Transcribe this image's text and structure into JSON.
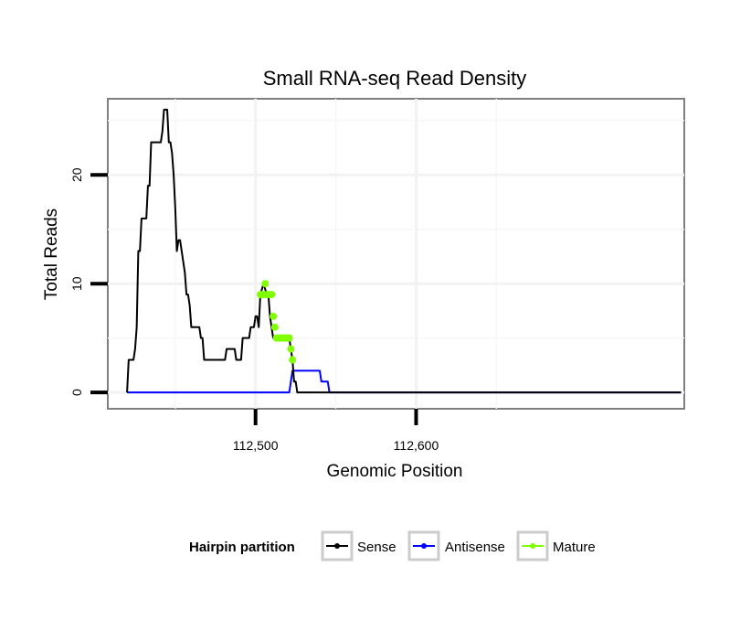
{
  "chart_data": {
    "type": "line",
    "title": "Small RNA-seq Read Density",
    "xlabel": "Genomic Position",
    "ylabel": "Total Reads",
    "xlim": [
      112408,
      112767
    ],
    "ylim": [
      -1.5,
      27
    ],
    "x_ticks": [
      112500,
      112600
    ],
    "x_tick_labels": [
      "112,500",
      "112,600"
    ],
    "y_ticks": [
      0,
      10,
      20
    ],
    "y_tick_labels": [
      "0",
      "10",
      "20"
    ],
    "grid": true,
    "legend": {
      "title": "Hairpin partition",
      "position": "bottom",
      "entries": [
        "Sense",
        "Antisense",
        "Mature"
      ]
    },
    "colors": {
      "Sense": "#000000",
      "Antisense": "#0000ff",
      "Mature": "#7fff00"
    },
    "series": [
      {
        "name": "Sense",
        "points": [
          [
            112420,
            0
          ],
          [
            112421,
            3
          ],
          [
            112424,
            3
          ],
          [
            112425,
            4
          ],
          [
            112426,
            6
          ],
          [
            112427,
            13
          ],
          [
            112428,
            13
          ],
          [
            112429,
            16
          ],
          [
            112432,
            16
          ],
          [
            112433,
            19
          ],
          [
            112434,
            19
          ],
          [
            112435,
            23
          ],
          [
            112441,
            23
          ],
          [
            112442,
            24
          ],
          [
            112443,
            26
          ],
          [
            112445,
            26
          ],
          [
            112446,
            23
          ],
          [
            112447,
            23
          ],
          [
            112448,
            22
          ],
          [
            112449,
            20
          ],
          [
            112450,
            17
          ],
          [
            112451,
            13
          ],
          [
            112452,
            14
          ],
          [
            112453,
            14
          ],
          [
            112454,
            13
          ],
          [
            112456,
            11
          ],
          [
            112457,
            9
          ],
          [
            112458,
            9
          ],
          [
            112459,
            8
          ],
          [
            112460,
            6
          ],
          [
            112465,
            6
          ],
          [
            112466,
            5
          ],
          [
            112467,
            5
          ],
          [
            112468,
            3
          ],
          [
            112481,
            3
          ],
          [
            112482,
            4
          ],
          [
            112487,
            4
          ],
          [
            112488,
            3
          ],
          [
            112491,
            3
          ],
          [
            112492,
            5
          ],
          [
            112496,
            5
          ],
          [
            112497,
            6
          ],
          [
            112499,
            6
          ],
          [
            112500,
            7
          ],
          [
            112501,
            7
          ],
          [
            112502,
            6
          ],
          [
            112503,
            9
          ],
          [
            112505,
            10
          ],
          [
            112507,
            9
          ],
          [
            112508,
            9
          ],
          [
            112509,
            7
          ],
          [
            112510,
            6
          ],
          [
            112511,
            5
          ],
          [
            112521,
            5
          ],
          [
            112522,
            4
          ],
          [
            112523,
            3
          ],
          [
            112524,
            1
          ],
          [
            112525,
            1
          ],
          [
            112526,
            0
          ],
          [
            112765,
            0
          ]
        ]
      },
      {
        "name": "Antisense",
        "points": [
          [
            112420,
            0
          ],
          [
            112521,
            0
          ],
          [
            112523,
            2
          ],
          [
            112540,
            2
          ],
          [
            112541,
            1
          ],
          [
            112545,
            1
          ],
          [
            112546,
            0
          ],
          [
            112765,
            0
          ]
        ]
      },
      {
        "name": "Mature",
        "points": [
          [
            112503,
            9
          ],
          [
            112504,
            9
          ],
          [
            112505,
            9
          ],
          [
            112506,
            10
          ],
          [
            112507,
            9
          ],
          [
            112508,
            9
          ],
          [
            112509,
            9
          ],
          [
            112510,
            9
          ],
          [
            112511,
            7
          ],
          [
            112512,
            6
          ],
          [
            112513,
            5
          ],
          [
            112514,
            5
          ],
          [
            112515,
            5
          ],
          [
            112516,
            5
          ],
          [
            112517,
            5
          ],
          [
            112518,
            5
          ],
          [
            112519,
            5
          ],
          [
            112520,
            5
          ],
          [
            112521,
            5
          ],
          [
            112522,
            4
          ],
          [
            112523,
            3
          ]
        ]
      }
    ]
  }
}
